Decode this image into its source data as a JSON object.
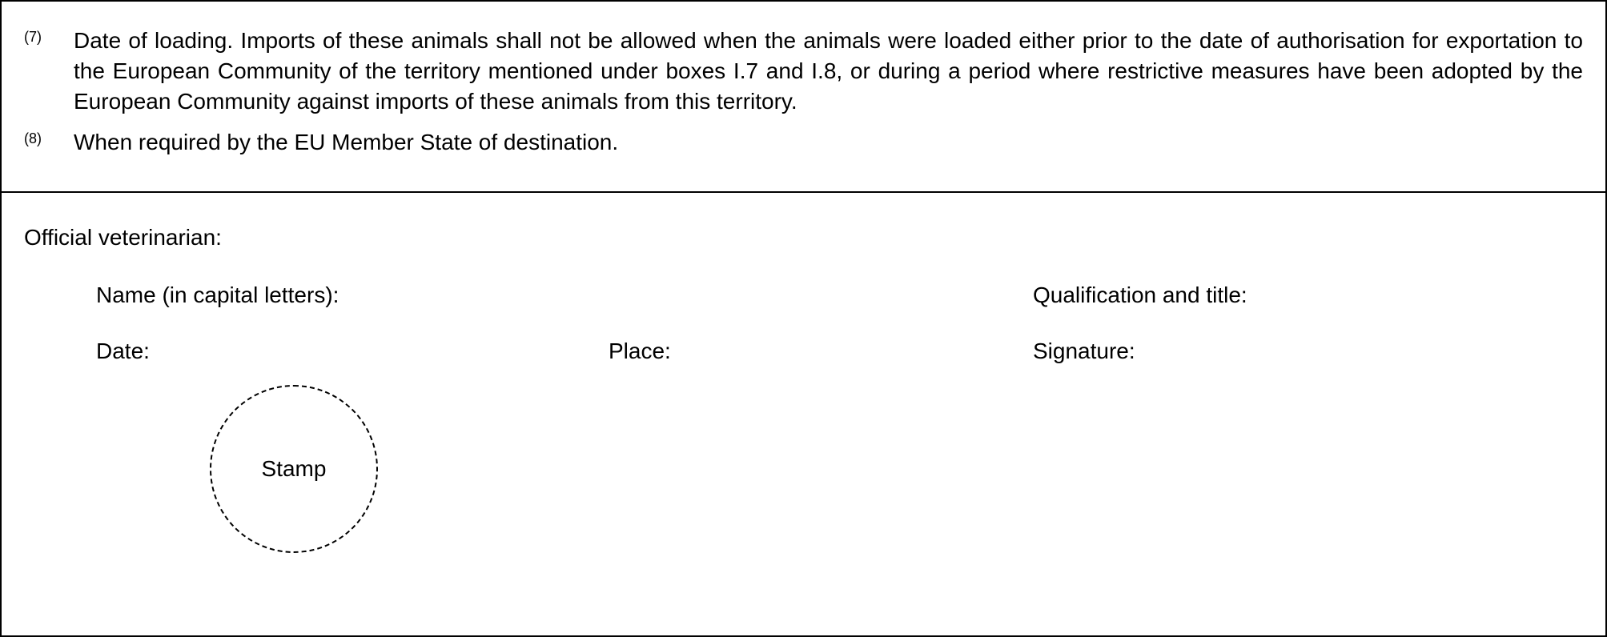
{
  "notes": [
    {
      "marker": "(7)",
      "text": "Date of loading. Imports of these animals shall not be allowed when the animals were loaded either prior to the date of authorisation for exportation to the European Community of the territory mentioned under boxes I.7 and I.8, or during a period where restrictive measures have been adopted by the European Community against imports of these animals from this territory."
    },
    {
      "marker": "(8)",
      "text": "When required by the EU Member State of destination."
    }
  ],
  "signature_section": {
    "title": "Official veterinarian:",
    "row1": {
      "name_label": "Name (in capital letters):",
      "qualification_label": "Qualification and title:"
    },
    "row2": {
      "date_label": "Date:",
      "place_label": "Place:",
      "signature_label": "Signature:"
    },
    "stamp_label": "Stamp"
  },
  "colors": {
    "border": "#000000",
    "background": "#ffffff",
    "text": "#000000"
  },
  "typography": {
    "body_fontsize": 28,
    "marker_fontsize": 18
  }
}
